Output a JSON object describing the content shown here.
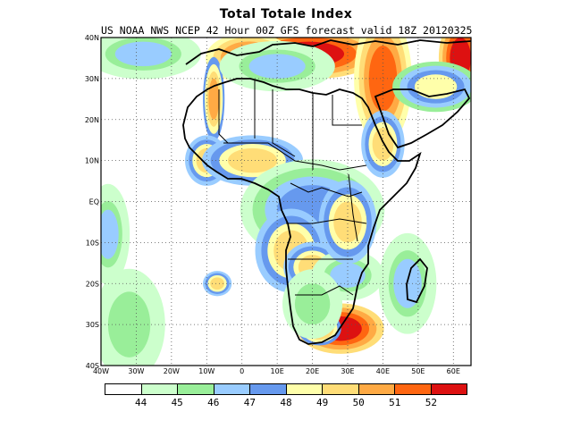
{
  "title": "Total Totale Index",
  "subtitle": "US NOAA NWS NCEP 42 Hour 00Z GFS forecast valid 18Z 20120325",
  "axes": {
    "lon_ticks": [
      "40W",
      "30W",
      "20W",
      "10W",
      "0",
      "10E",
      "20E",
      "30E",
      "40E",
      "50E",
      "60E"
    ],
    "lat_ticks": [
      "40N",
      "30N",
      "20N",
      "10N",
      "EQ",
      "10S",
      "20S",
      "30S",
      "40S"
    ]
  },
  "legend": {
    "colors": [
      "#ffffff",
      "#ccffcc",
      "#99ee99",
      "#99ccff",
      "#6699ee",
      "#ffffaa",
      "#ffdd77",
      "#ffaa44",
      "#ff6611",
      "#dd1111"
    ],
    "labels": [
      "44",
      "45",
      "46",
      "47",
      "48",
      "49",
      "50",
      "51",
      "52"
    ]
  },
  "map_data": {
    "extent": {
      "lon": [
        -40,
        65
      ],
      "lat": [
        -40,
        40
      ]
    },
    "grid": "dotted",
    "blobs": [
      {
        "lon": 19,
        "lat": 36,
        "rx": 10,
        "ry": 3,
        "level": 9
      },
      {
        "lon": 2,
        "lat": 35,
        "rx": 6,
        "ry": 3,
        "level": 8
      },
      {
        "lon": 40,
        "lat": 30,
        "rx": 4,
        "ry": 8,
        "level": 8
      },
      {
        "lon": 62,
        "lat": 35,
        "rx": 3,
        "ry": 5,
        "level": 9
      },
      {
        "lon": 28,
        "lat": -31,
        "rx": 6,
        "ry": 3,
        "level": 9
      },
      {
        "lon": 22,
        "lat": -31,
        "rx": 3,
        "ry": 2,
        "level": 7
      },
      {
        "lon": -8,
        "lat": 25,
        "rx": 1.5,
        "ry": 5,
        "level": 7
      },
      {
        "lon": -28,
        "lat": 36,
        "rx": 8,
        "ry": 3,
        "level": 3
      },
      {
        "lon": -10,
        "lat": 10,
        "rx": 3,
        "ry": 3,
        "level": 6
      },
      {
        "lon": 3,
        "lat": 10,
        "rx": 7,
        "ry": 3,
        "level": 6
      },
      {
        "lon": 20,
        "lat": -2,
        "rx": 10,
        "ry": 6,
        "level": 4
      },
      {
        "lon": 14,
        "lat": -12,
        "rx": 5,
        "ry": 5,
        "level": 6
      },
      {
        "lon": 20,
        "lat": -16,
        "rx": 4,
        "ry": 3,
        "level": 6
      },
      {
        "lon": 30,
        "lat": -18,
        "rx": 5,
        "ry": 3,
        "level": 3
      },
      {
        "lon": 47,
        "lat": -20,
        "rx": 4,
        "ry": 6,
        "level": 3
      },
      {
        "lon": -38,
        "lat": -8,
        "rx": 3,
        "ry": 6,
        "level": 3
      },
      {
        "lon": -32,
        "lat": -30,
        "rx": 6,
        "ry": 8,
        "level": 2
      },
      {
        "lon": -7,
        "lat": -20,
        "rx": 2,
        "ry": 1.5,
        "level": 6
      },
      {
        "lon": 40,
        "lat": 14,
        "rx": 3,
        "ry": 4,
        "level": 6
      },
      {
        "lon": 30,
        "lat": -5,
        "rx": 4,
        "ry": 5,
        "level": 6
      },
      {
        "lon": 20,
        "lat": -25,
        "rx": 5,
        "ry": 5,
        "level": 2
      },
      {
        "lon": 55,
        "lat": 28,
        "rx": 6,
        "ry": 3,
        "level": 5
      },
      {
        "lon": 10,
        "lat": 33,
        "rx": 8,
        "ry": 3,
        "level": 3
      }
    ]
  }
}
